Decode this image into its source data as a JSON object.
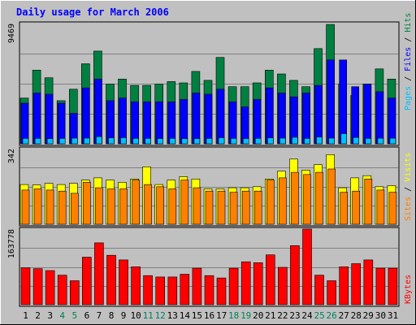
{
  "chart_data": {
    "type": "bar",
    "title": "Daily usage for March 2006",
    "categories": [
      "1",
      "2",
      "3",
      "4",
      "5",
      "6",
      "7",
      "8",
      "9",
      "10",
      "11",
      "12",
      "13",
      "14",
      "15",
      "16",
      "17",
      "18",
      "19",
      "20",
      "21",
      "22",
      "23",
      "24",
      "25",
      "26",
      "27",
      "28",
      "29",
      "30",
      "31"
    ],
    "weekend_days": [
      "4",
      "5",
      "11",
      "12",
      "18",
      "19",
      "25",
      "26"
    ],
    "panels": [
      {
        "id": "top",
        "ymax_label": "9469",
        "ymax": 9469,
        "legend": [
          "Pages",
          "Files",
          "Hits"
        ],
        "legend_colors": [
          "#00c0ff",
          "#0000ff",
          "#008040"
        ],
        "series": [
          {
            "name": "Hits",
            "color": "#008040",
            "values": [
              3600,
              5800,
              5200,
              3400,
              4300,
              6300,
              7300,
              4700,
              5100,
              4600,
              4600,
              4700,
              4900,
              4800,
              5700,
              5000,
              6800,
              4500,
              4500,
              4800,
              5800,
              5500,
              5000,
              4500,
              7500,
              9400,
              4700,
              3800,
              4700,
              5900,
              5100
            ]
          },
          {
            "name": "Files",
            "color": "#0000ff",
            "values": [
              3200,
              4000,
              3900,
              3200,
              2400,
              4400,
              5100,
              3400,
              3600,
              3300,
              3300,
              3300,
              3300,
              3500,
              4000,
              3900,
              4300,
              3300,
              2900,
              3500,
              4400,
              4000,
              3700,
              4000,
              4600,
              6600,
              6600,
              4500,
              4700,
              4100,
              3600
            ]
          },
          {
            "name": "Pages",
            "color": "#00c0ff",
            "values": [
              420,
              420,
              400,
              420,
              450,
              450,
              560,
              470,
              480,
              420,
              430,
              410,
              430,
              410,
              410,
              430,
              480,
              420,
              410,
              430,
              470,
              450,
              510,
              420,
              540,
              450,
              800,
              500,
              420,
              440,
              440
            ]
          }
        ]
      },
      {
        "id": "middle",
        "ymax_label": "342",
        "ymax": 342,
        "legend": [
          "Sites",
          "Visits"
        ],
        "legend_colors": [
          "#ff8000",
          "#ffff00"
        ],
        "series": [
          {
            "name": "Visits",
            "color": "#ffff00",
            "values": [
              180,
              178,
              185,
              180,
              185,
              200,
              210,
              200,
              190,
              205,
              260,
              180,
              200,
              215,
              205,
              160,
              160,
              165,
              165,
              170,
              205,
              240,
              295,
              245,
              270,
              315,
              165,
              210,
              220,
              170,
              175
            ]
          },
          {
            "name": "Sites",
            "color": "#ff8000",
            "values": [
              155,
              160,
              155,
              150,
              140,
              190,
              165,
              160,
              160,
              200,
              180,
              170,
              160,
              200,
              165,
              150,
              150,
              145,
              150,
              150,
              200,
              210,
              235,
              225,
              235,
              250,
              145,
              150,
              205,
              155,
              145
            ]
          }
        ]
      },
      {
        "id": "bottom",
        "ymax_label": "163778",
        "ymax": 163778,
        "legend": [
          "KBytes"
        ],
        "legend_colors": [
          "#ff0000"
        ],
        "series": [
          {
            "name": "KBytes",
            "color": "#ff0000",
            "values": [
              80000,
              78000,
              74000,
              64000,
              52000,
              103000,
              134000,
              107000,
              97000,
              82000,
              63000,
              60000,
              60000,
              66000,
              79000,
              63000,
              58000,
              79000,
              93000,
              91000,
              108000,
              81000,
              128000,
              164000,
              64000,
              52000,
              82000,
              89000,
              97000,
              79000,
              79000
            ]
          }
        ]
      }
    ]
  }
}
